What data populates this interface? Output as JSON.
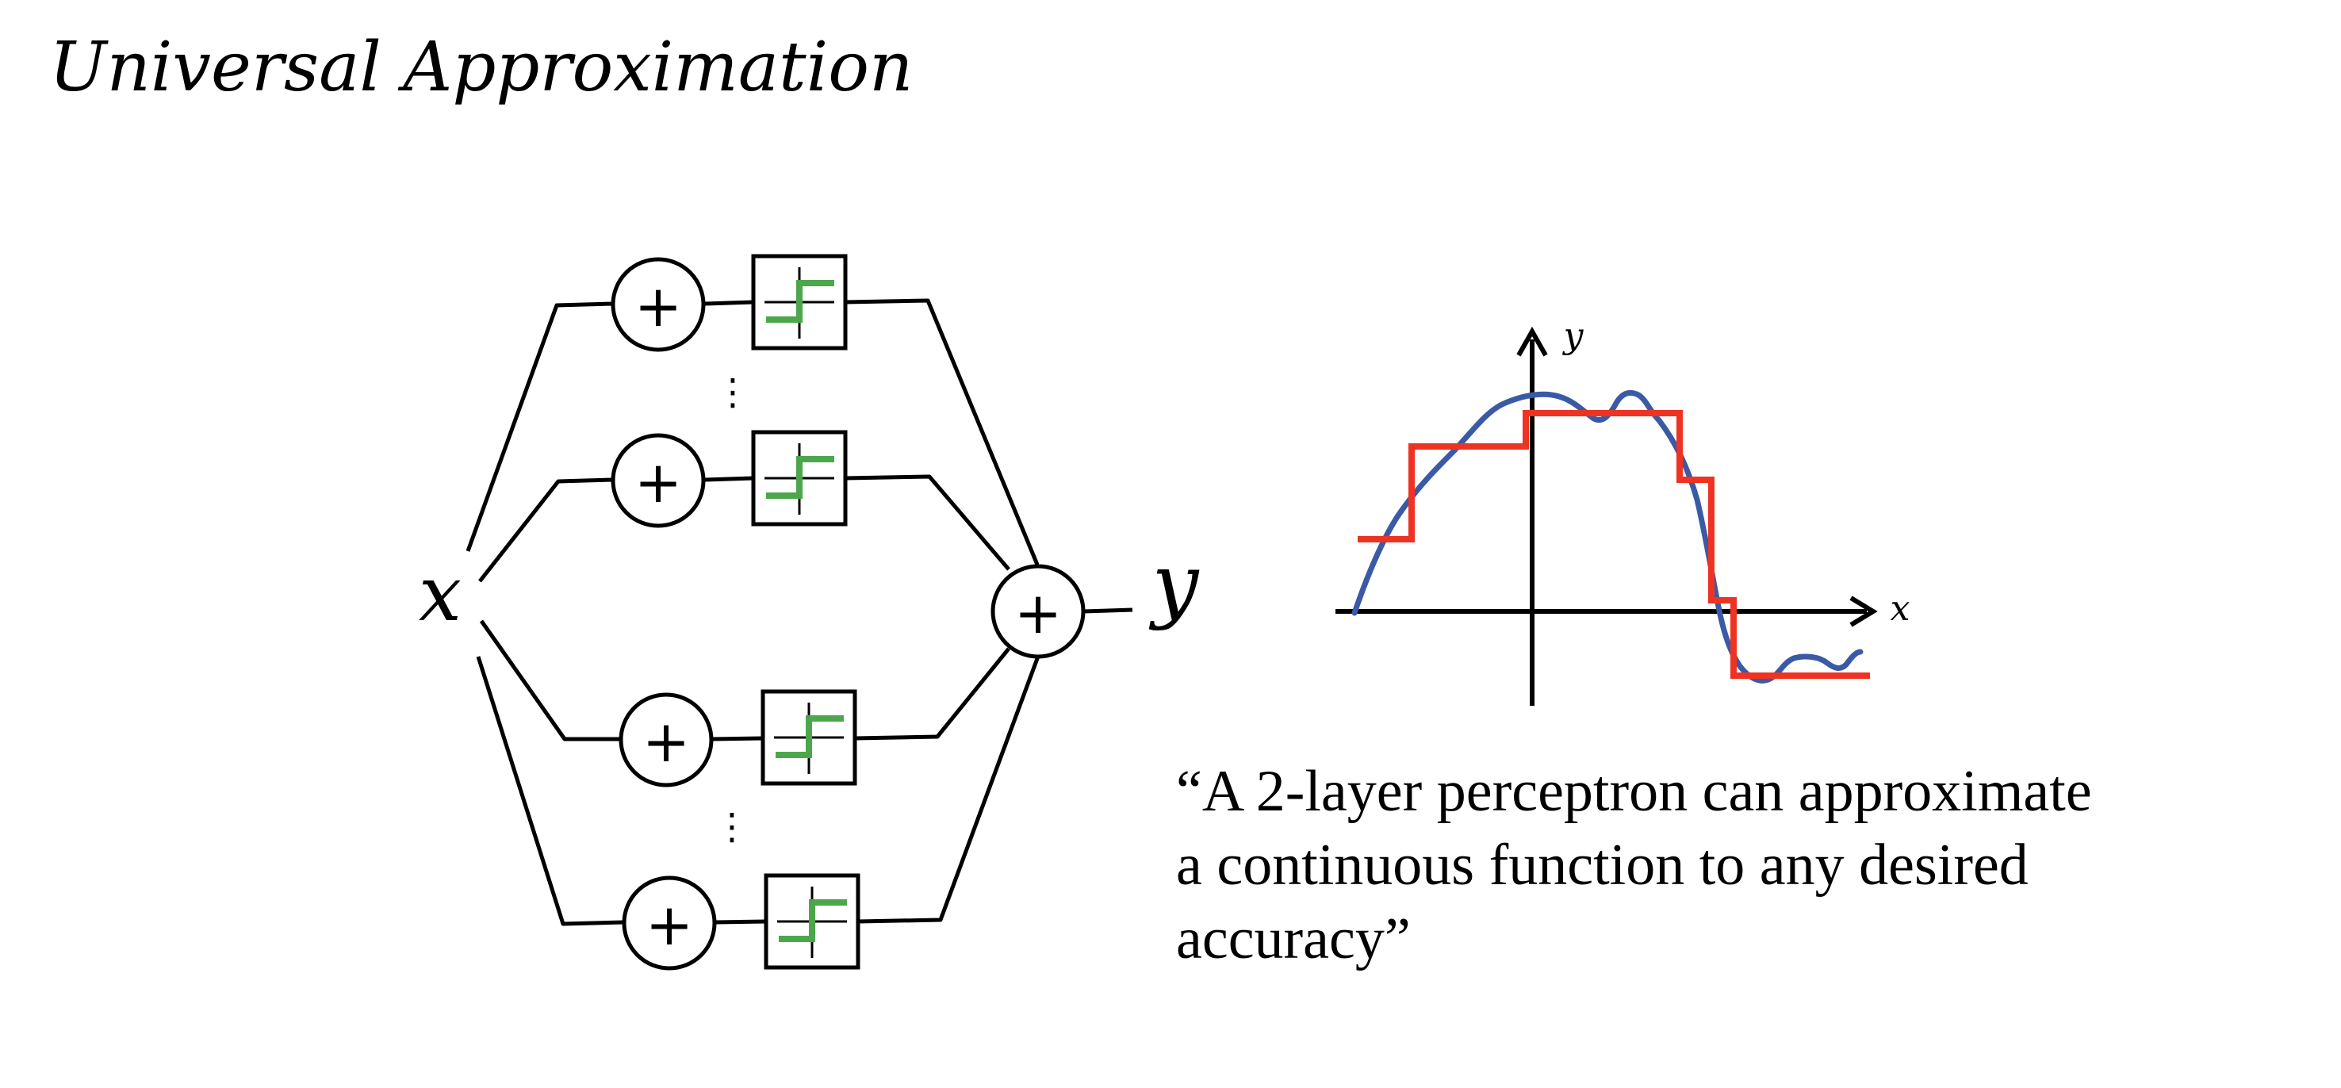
{
  "slide": {
    "title": "Universal Approximation",
    "quote_lines": [
      "“A 2-layer perceptron can approximate",
      "a continuous function to any desired",
      "accuracy”"
    ]
  },
  "network": {
    "input_label": "x",
    "output_label": "y",
    "sum_symbol": "+",
    "ellipsis": "⋮",
    "hidden_units_shown": 4,
    "activation": "step-function-icon",
    "activation_color": "#4ca64c"
  },
  "plot": {
    "xlabel": "x",
    "ylabel": "y",
    "target_curve_color": "#3b5aa6",
    "approximation_color": "#ee3322"
  }
}
